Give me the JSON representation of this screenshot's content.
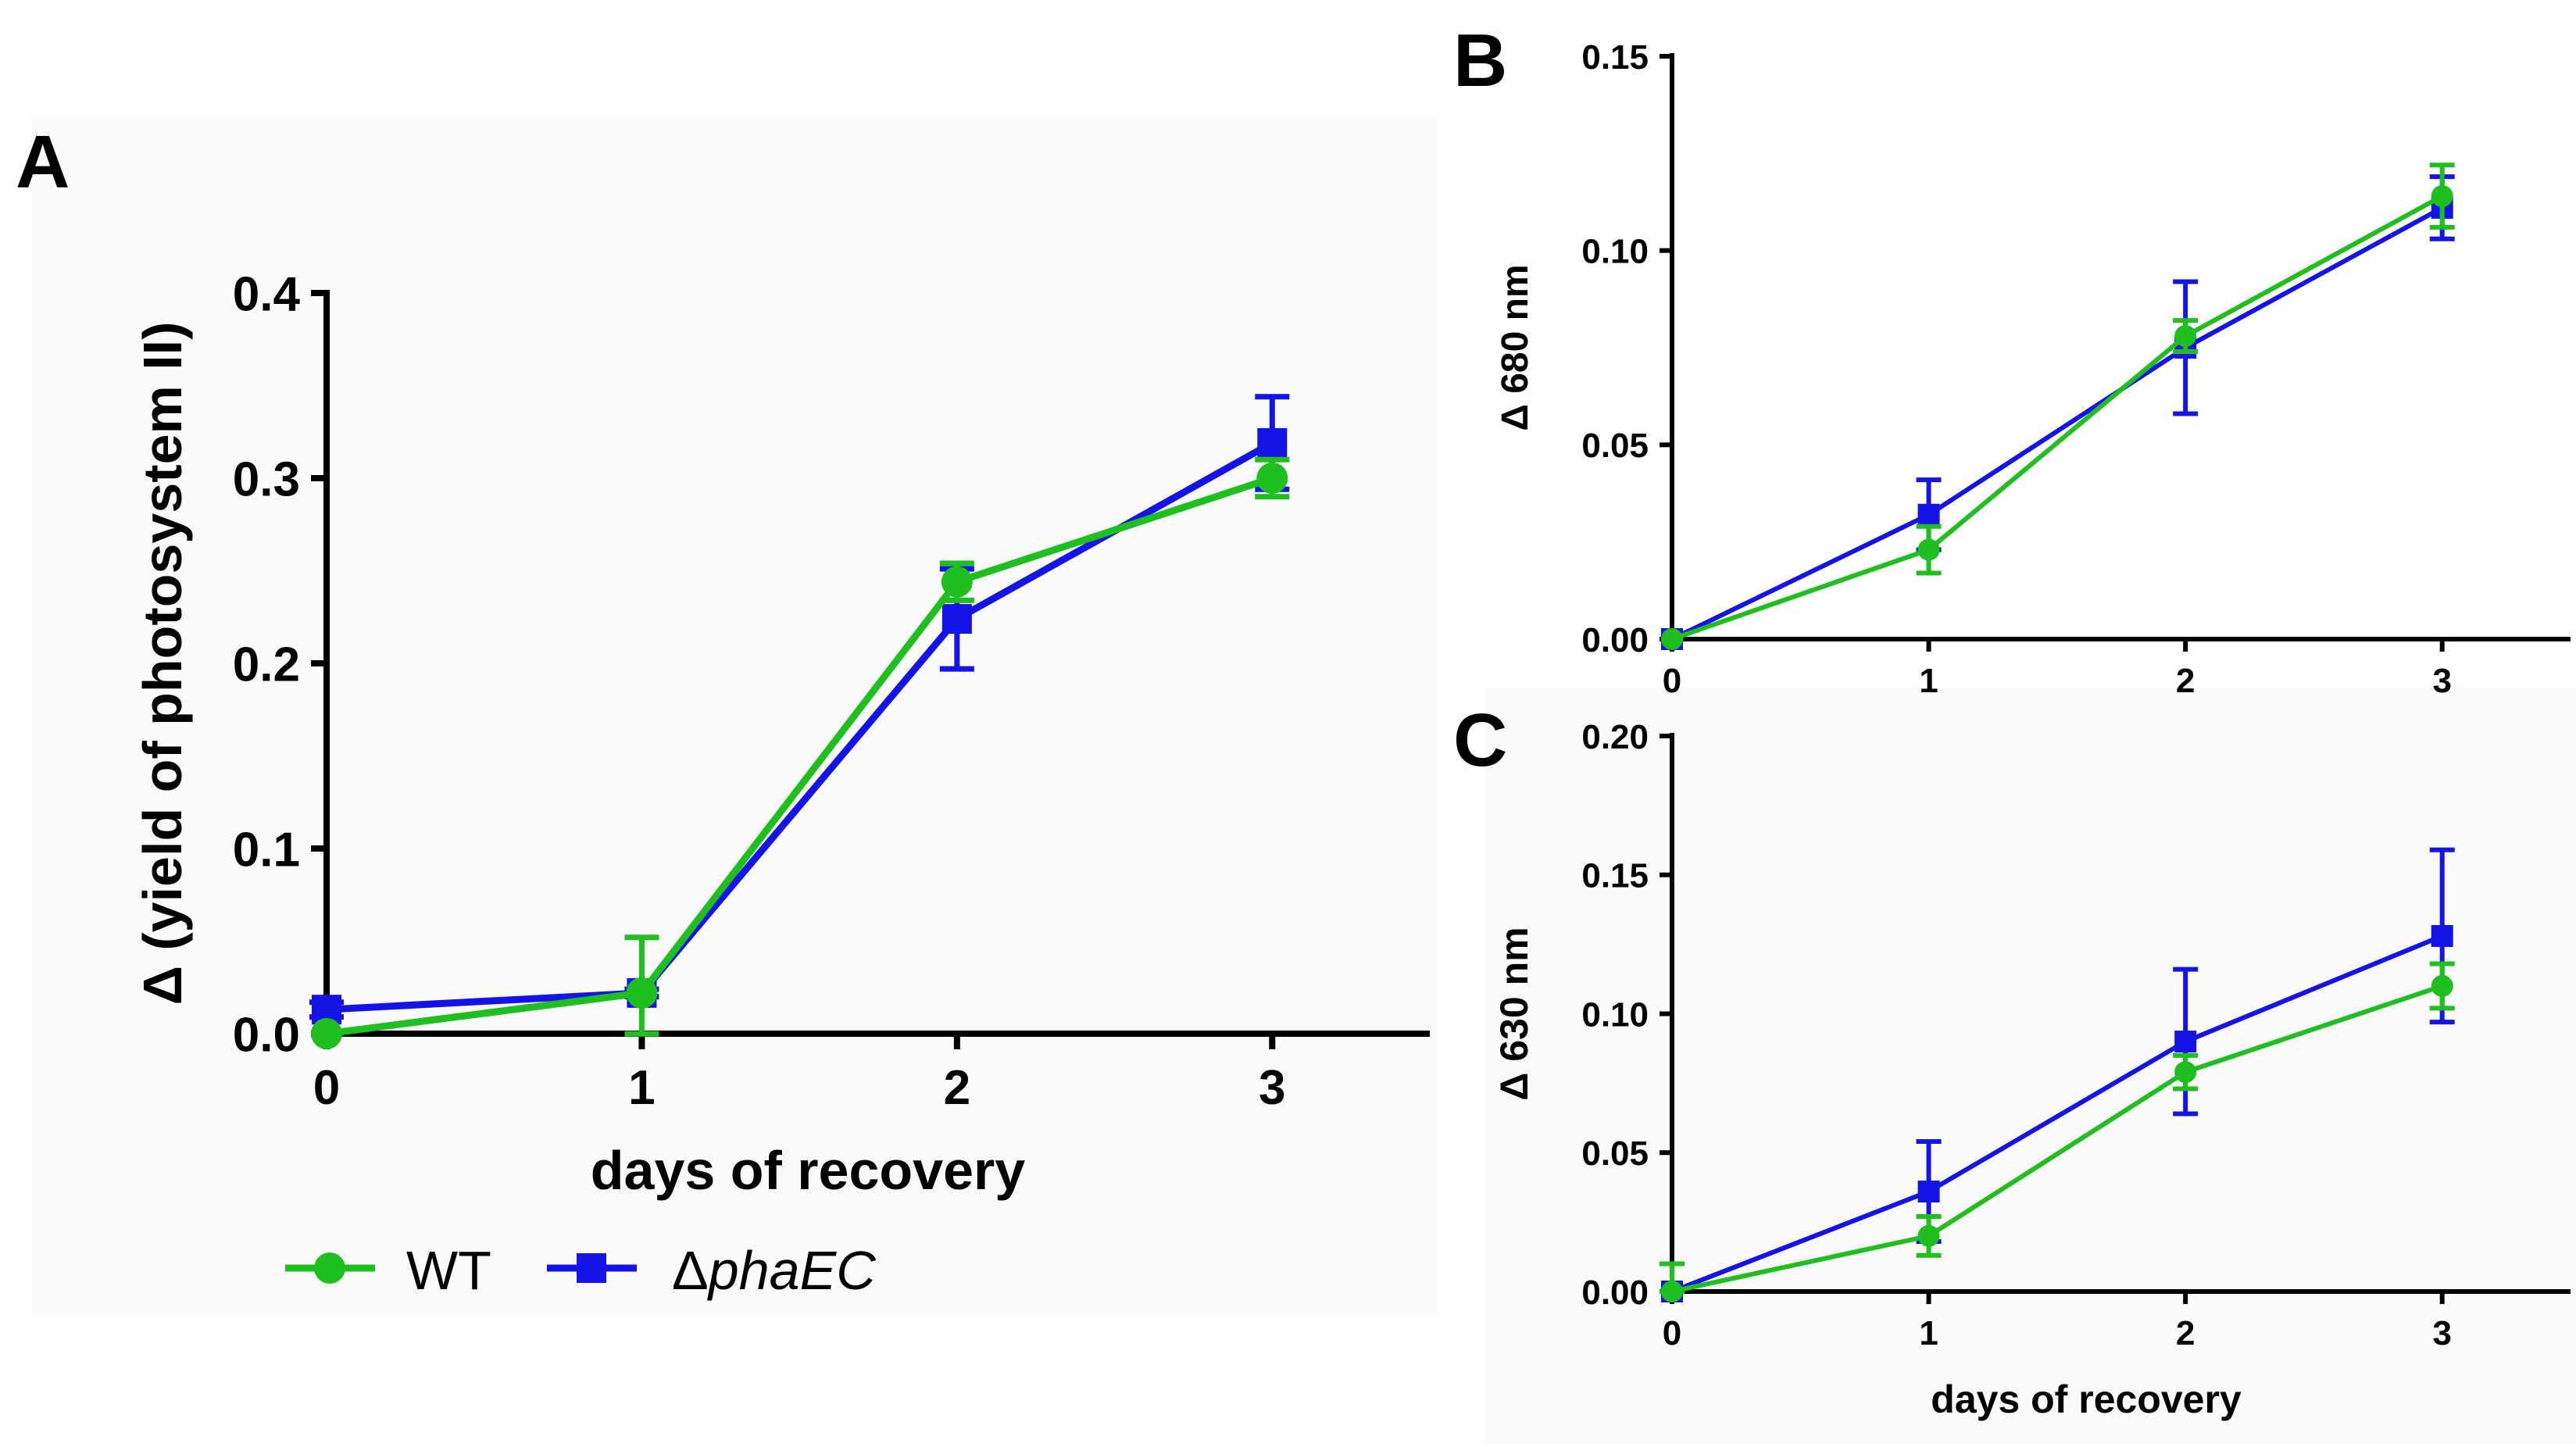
{
  "colors": {
    "wt": "#1fbf1f",
    "mutant": "#1414e6",
    "axis": "#000000",
    "panel_bg": "#fafafa"
  },
  "legend": {
    "wt_label": "WT",
    "mutant_prefix": "Δ",
    "mutant_italic": "phaEC"
  },
  "chart_data": [
    {
      "panel": "A",
      "type": "line",
      "xlabel": "days of recovery",
      "ylabel": "Δ (yield of photosystem II)",
      "x": [
        0,
        1,
        2,
        3
      ],
      "xticks": [
        "0",
        "1",
        "2",
        "3"
      ],
      "xlim": [
        0,
        3.5
      ],
      "ylim": [
        0,
        0.4
      ],
      "yticks": [
        "0.0",
        "0.1",
        "0.2",
        "0.3",
        "0.4"
      ],
      "series": [
        {
          "name": "WT",
          "values": [
            0.0,
            0.022,
            0.244,
            0.3
          ],
          "err": [
            0.0,
            0.03,
            0.01,
            0.01
          ]
        },
        {
          "name": "ΔphaEC",
          "values": [
            0.013,
            0.022,
            0.224,
            0.319
          ],
          "err": [
            0.004,
            0.002,
            0.027,
            0.025
          ]
        }
      ]
    },
    {
      "panel": "B",
      "type": "line",
      "xlabel": "",
      "ylabel": "Δ 680 nm",
      "x": [
        0,
        1,
        2,
        3
      ],
      "xticks": [
        "0",
        "1",
        "2",
        "3"
      ],
      "xlim": [
        0,
        3.5
      ],
      "ylim": [
        0,
        0.15
      ],
      "yticks": [
        "0.00",
        "0.05",
        "0.10",
        "0.15"
      ],
      "series": [
        {
          "name": "WT",
          "values": [
            0.0,
            0.023,
            0.078,
            0.114
          ],
          "err": [
            0.0,
            0.006,
            0.004,
            0.008
          ]
        },
        {
          "name": "ΔphaEC",
          "values": [
            0.0,
            0.032,
            0.075,
            0.111
          ],
          "err": [
            0.0,
            0.009,
            0.017,
            0.008
          ]
        }
      ]
    },
    {
      "panel": "C",
      "type": "line",
      "xlabel": "days of recovery",
      "ylabel": "Δ 630 nm",
      "x": [
        0,
        1,
        2,
        3
      ],
      "xticks": [
        "0",
        "1",
        "2",
        "3"
      ],
      "xlim": [
        0,
        3.5
      ],
      "ylim": [
        0,
        0.2
      ],
      "yticks": [
        "0.00",
        "0.05",
        "0.10",
        "0.15",
        "0.20"
      ],
      "series": [
        {
          "name": "WT",
          "values": [
            0.0,
            0.02,
            0.079,
            0.11
          ],
          "err": [
            0.01,
            0.007,
            0.006,
            0.008
          ]
        },
        {
          "name": "ΔphaEC",
          "values": [
            0.0,
            0.036,
            0.09,
            0.128
          ],
          "err": [
            0.0,
            0.018,
            0.026,
            0.031
          ]
        }
      ]
    }
  ]
}
